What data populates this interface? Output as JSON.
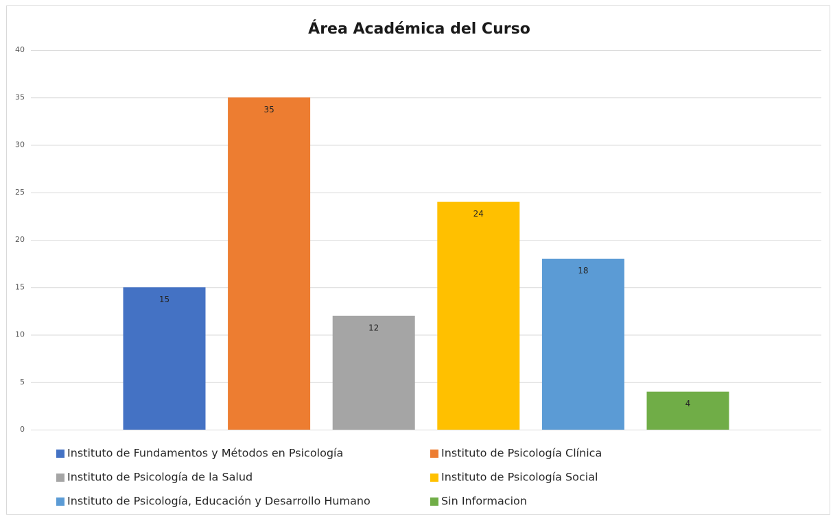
{
  "chart_data": {
    "type": "bar",
    "title": "Área Académica del Curso",
    "series": [
      {
        "name": "Instituto de Fundamentos y Métodos en Psicología",
        "color": "#4472c4",
        "values": [
          15
        ]
      },
      {
        "name": "Instituto de Psicología Clínica",
        "color": "#ed7d31",
        "values": [
          35
        ]
      },
      {
        "name": "Instituto de Psicología de la Salud",
        "color": "#a5a5a5",
        "values": [
          12
        ]
      },
      {
        "name": "Instituto de Psicología Social",
        "color": "#ffc000",
        "values": [
          24
        ]
      },
      {
        "name": "Instituto de Psicología, Educación y Desarrollo Humano",
        "color": "#5b9bd5",
        "values": [
          18
        ]
      },
      {
        "name": "Sin Informacion",
        "color": "#70ad47",
        "values": [
          4
        ]
      }
    ],
    "ylim": [
      0,
      40
    ],
    "yticks": [
      0,
      5,
      10,
      15,
      20,
      25,
      30,
      35,
      40
    ],
    "grid": true,
    "legend": "bottom"
  }
}
